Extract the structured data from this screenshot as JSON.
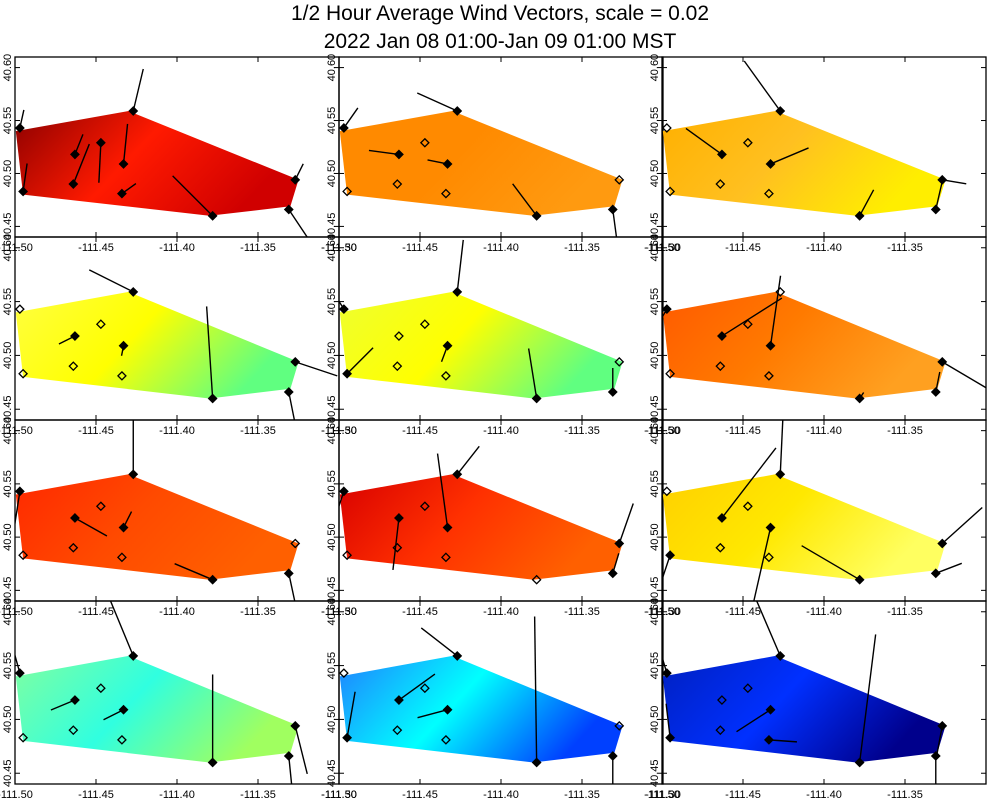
{
  "chart_data": {
    "type": "vector-field-grid",
    "title_line1": "1/2 Hour Average Wind Vectors, scale =  0.02",
    "title_line2": "2022 Jan 08 01:00-Jan 09 01:00 MST",
    "xlim": [
      -111.5,
      -111.3
    ],
    "ylim": [
      40.44,
      40.61
    ],
    "x_ticks": [
      -111.5,
      -111.45,
      -111.4,
      -111.35,
      -111.3
    ],
    "x_tick_labels": [
      "-111.50",
      "-111.45",
      "-111.40",
      "-111.35",
      "-111.30"
    ],
    "y_ticks": [
      40.45,
      40.5,
      40.55,
      40.6
    ],
    "y_tick_labels": [
      "40.45",
      "40.50",
      "40.55",
      "40.60"
    ],
    "grid_rows": 4,
    "grid_cols": 3,
    "domain_polygon": [
      [
        -111.4995,
        40.54
      ],
      [
        -111.43,
        40.559
      ],
      [
        -111.325,
        40.494
      ],
      [
        -111.33,
        40.469
      ],
      [
        -111.38,
        40.46
      ],
      [
        -111.495,
        40.48
      ]
    ],
    "stations": [
      {
        "lon": -111.497,
        "lat": 40.543
      },
      {
        "lon": -111.495,
        "lat": 40.483
      },
      {
        "lon": -111.463,
        "lat": 40.518
      },
      {
        "lon": -111.464,
        "lat": 40.49
      },
      {
        "lon": -111.447,
        "lat": 40.529
      },
      {
        "lon": -111.433,
        "lat": 40.509
      },
      {
        "lon": -111.434,
        "lat": 40.481
      },
      {
        "lon": -111.427,
        "lat": 40.559
      },
      {
        "lon": -111.378,
        "lat": 40.46
      },
      {
        "lon": -111.327,
        "lat": 40.494
      },
      {
        "lon": -111.331,
        "lat": 40.466
      }
    ],
    "panels": [
      {
        "colors": [
          "#8c0000",
          "#ff1a00",
          "#d00000"
        ],
        "vectors": [
          [
            4,
            -18
          ],
          [
            4,
            -28
          ],
          [
            8,
            -20
          ],
          [
            16,
            -40
          ],
          [
            -2,
            40
          ],
          [
            4,
            -40
          ],
          [
            14,
            -10
          ],
          [
            10,
            -42
          ],
          [
            -40,
            -40
          ],
          [
            8,
            -16
          ],
          [
            20,
            30
          ]
        ]
      },
      {
        "colors": [
          "#ff8a00",
          "#ff8a00",
          "#ff9a10"
        ],
        "vectors": [
          [
            14,
            -20
          ],
          [
            0,
            0
          ],
          [
            -30,
            -4
          ],
          [
            0,
            0
          ],
          [
            0,
            0
          ],
          [
            -20,
            -4
          ],
          [
            0,
            0
          ],
          [
            -40,
            -18
          ],
          [
            -24,
            -32
          ],
          [
            0,
            0
          ],
          [
            4,
            30
          ]
        ]
      },
      {
        "colors": [
          "#ffb000",
          "#ffc020",
          "#ffee00"
        ],
        "vectors": [
          [
            0,
            0
          ],
          [
            0,
            0
          ],
          [
            -36,
            -26
          ],
          [
            0,
            0
          ],
          [
            0,
            0
          ],
          [
            38,
            -16
          ],
          [
            0,
            0
          ],
          [
            -36,
            -50
          ],
          [
            14,
            -26
          ],
          [
            24,
            4
          ],
          [
            6,
            -26
          ]
        ]
      },
      {
        "colors": [
          "#ffff40",
          "#ffff00",
          "#60ff80"
        ],
        "vectors": [
          [
            0,
            0
          ],
          [
            0,
            0
          ],
          [
            -16,
            8
          ],
          [
            0,
            0
          ],
          [
            0,
            0
          ],
          [
            -2,
            10
          ],
          [
            0,
            0
          ],
          [
            -44,
            -22
          ],
          [
            -6,
            -92
          ],
          [
            42,
            14
          ],
          [
            6,
            30
          ]
        ]
      },
      {
        "colors": [
          "#eeff30",
          "#ffff00",
          "#60ff80"
        ],
        "vectors": [
          [
            -10,
            -16
          ],
          [
            26,
            -26
          ],
          [
            0,
            0
          ],
          [
            0,
            0
          ],
          [
            0,
            0
          ],
          [
            -6,
            16
          ],
          [
            0,
            0
          ],
          [
            6,
            -52
          ],
          [
            -8,
            -50
          ],
          [
            0,
            0
          ],
          [
            0,
            -24
          ]
        ]
      },
      {
        "colors": [
          "#ff5a00",
          "#ff7a00",
          "#ffa020"
        ],
        "vectors": [
          [
            -20,
            34
          ],
          [
            0,
            0
          ],
          [
            60,
            -38
          ],
          [
            0,
            0
          ],
          [
            0,
            0
          ],
          [
            10,
            -70
          ],
          [
            0,
            0
          ],
          [
            0,
            0
          ],
          [
            4,
            -6
          ],
          [
            44,
            26
          ],
          [
            4,
            -20
          ]
        ]
      },
      {
        "colors": [
          "#ff2800",
          "#ff4a00",
          "#ff6000"
        ],
        "vectors": [
          [
            -8,
            52
          ],
          [
            0,
            0
          ],
          [
            32,
            18
          ],
          [
            0,
            0
          ],
          [
            0,
            0
          ],
          [
            8,
            -16
          ],
          [
            0,
            0
          ],
          [
            0,
            -90
          ],
          [
            -38,
            -16
          ],
          [
            0,
            0
          ],
          [
            6,
            28
          ]
        ]
      },
      {
        "colors": [
          "#d80000",
          "#ff3000",
          "#ff6000"
        ],
        "vectors": [
          [
            -14,
            42
          ],
          [
            0,
            0
          ],
          [
            -6,
            52
          ],
          [
            0,
            0
          ],
          [
            0,
            0
          ],
          [
            -10,
            -74
          ],
          [
            0,
            0
          ],
          [
            22,
            -28
          ],
          [
            0,
            0
          ],
          [
            14,
            -40
          ],
          [
            6,
            -20
          ]
        ]
      },
      {
        "colors": [
          "#ffd000",
          "#ffe800",
          "#ffff60"
        ],
        "vectors": [
          [
            0,
            0
          ],
          [
            -10,
            30
          ],
          [
            54,
            -70
          ],
          [
            0,
            0
          ],
          [
            0,
            0
          ],
          [
            -20,
            88
          ],
          [
            0,
            0
          ],
          [
            4,
            -86
          ],
          [
            -58,
            -34
          ],
          [
            40,
            -36
          ],
          [
            26,
            -10
          ]
        ]
      },
      {
        "colors": [
          "#80ffa0",
          "#30ffe0",
          "#a0ff60"
        ],
        "vectors": [
          [
            -10,
            -36
          ],
          [
            0,
            0
          ],
          [
            -24,
            10
          ],
          [
            0,
            0
          ],
          [
            0,
            0
          ],
          [
            -20,
            10
          ],
          [
            0,
            0
          ],
          [
            -24,
            -58
          ],
          [
            0,
            -88
          ],
          [
            12,
            48
          ],
          [
            4,
            40
          ]
        ]
      },
      {
        "colors": [
          "#2080ff",
          "#00ffff",
          "#0040ff"
        ],
        "vectors": [
          [
            0,
            0
          ],
          [
            8,
            -46
          ],
          [
            36,
            -26
          ],
          [
            0,
            0
          ],
          [
            0,
            0
          ],
          [
            -30,
            8
          ],
          [
            0,
            0
          ],
          [
            -36,
            -28
          ],
          [
            -2,
            -146
          ],
          [
            0,
            0
          ],
          [
            0,
            50
          ]
        ]
      },
      {
        "colors": [
          "#0020c0",
          "#0030ff",
          "#00008c"
        ],
        "vectors": [
          [
            -6,
            -20
          ],
          [
            -4,
            -34
          ],
          [
            0,
            0
          ],
          [
            0,
            0
          ],
          [
            0,
            0
          ],
          [
            -34,
            22
          ],
          [
            28,
            2
          ],
          [
            -24,
            -56
          ],
          [
            16,
            -128
          ],
          [
            -6,
            32
          ],
          [
            0,
            40
          ]
        ]
      }
    ]
  }
}
